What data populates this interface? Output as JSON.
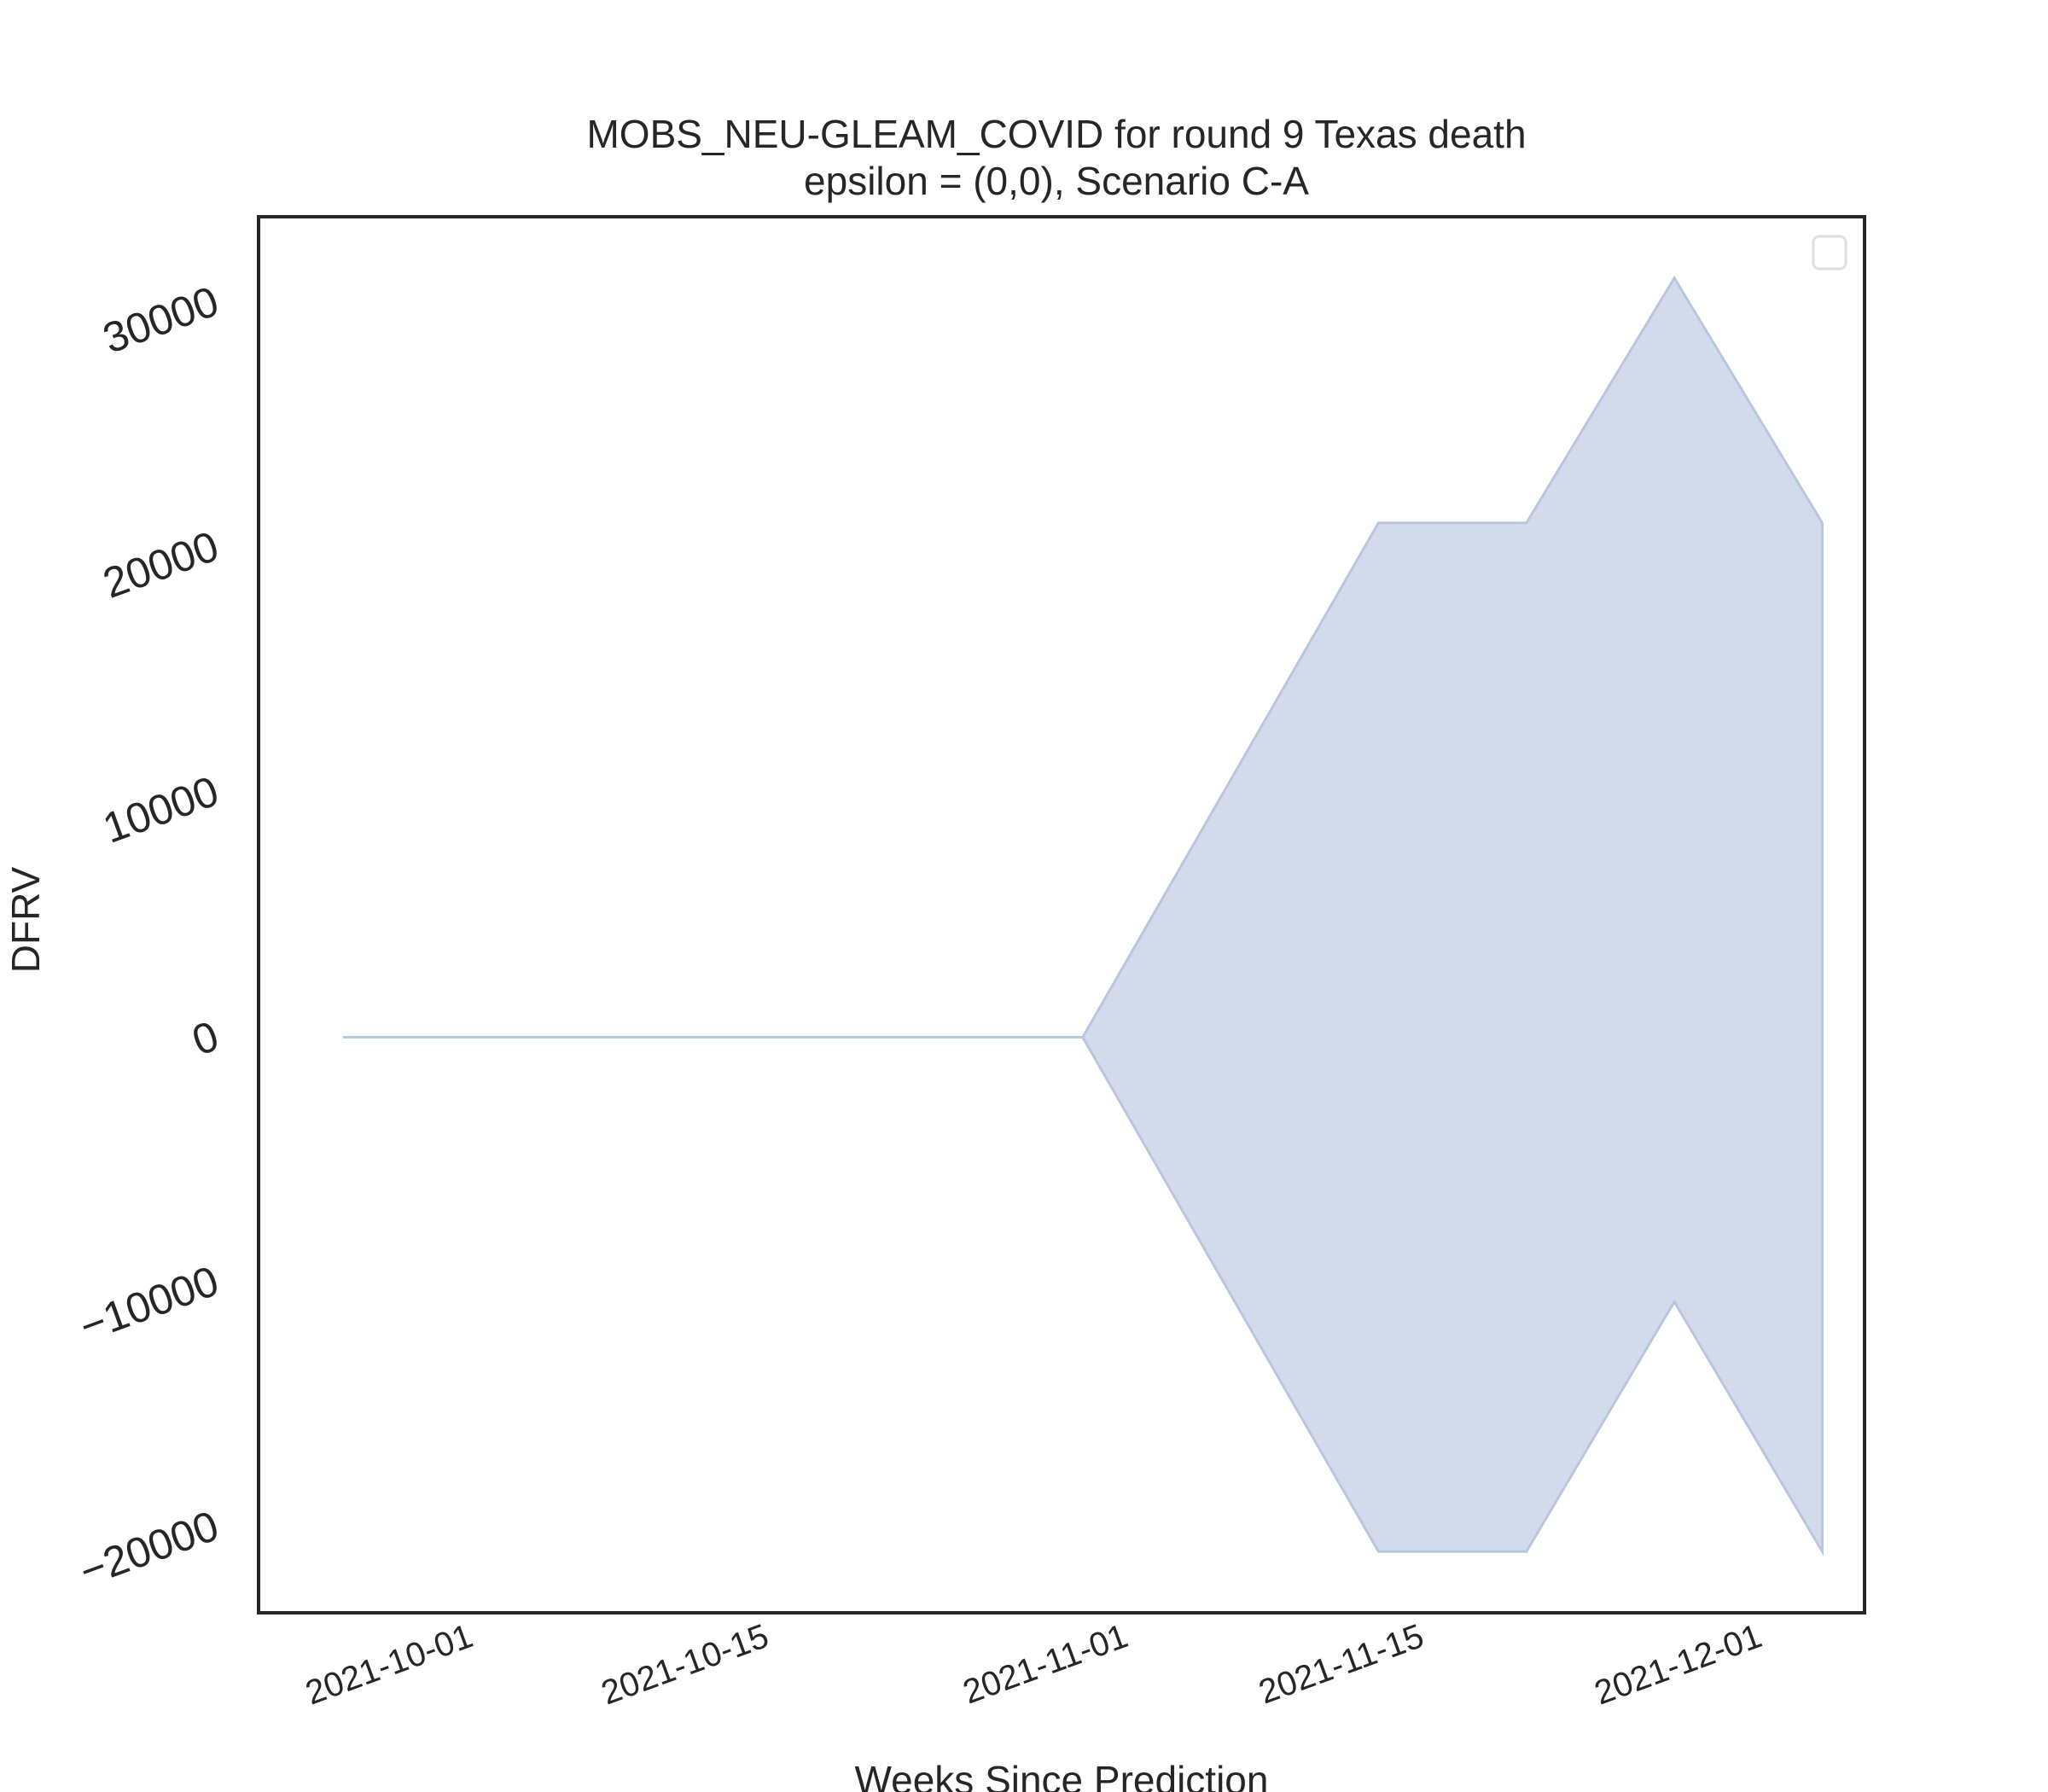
{
  "chart_data": {
    "type": "area",
    "title": "MOBS_NEU-GLEAM_COVID for round 9 Texas death",
    "subtitle": "epsilon = (0,0), Scenario C-A",
    "xlabel": "Weeks Since Prediction",
    "ylabel": "DFRV",
    "x_tick_labels": [
      "2021-10-01",
      "2021-10-15",
      "2021-11-01",
      "2021-11-15",
      "2021-12-01"
    ],
    "y_tick_labels": [
      "−20000",
      "−10000",
      "0",
      "10000",
      "20000",
      "30000"
    ],
    "x_ticks": [
      "2021-10-01",
      "2021-10-15",
      "2021-11-01",
      "2021-11-15",
      "2021-12-01"
    ],
    "y_ticks": [
      -20000,
      -10000,
      0,
      10000,
      20000,
      30000
    ],
    "xlim": [
      "2021-09-21",
      "2021-12-06"
    ],
    "ylim": [
      -23500,
      33500
    ],
    "x": [
      "2021-09-25",
      "2021-10-02",
      "2021-10-09",
      "2021-10-16",
      "2021-10-23",
      "2021-10-30",
      "2021-11-06",
      "2021-11-13",
      "2021-11-20",
      "2021-11-27",
      "2021-12-04"
    ],
    "series": [
      {
        "lower": [
          0,
          0,
          0,
          0,
          0,
          0,
          -10500,
          -21000,
          -21000,
          -10800,
          -21000
        ],
        "upper": [
          0,
          0,
          0,
          0,
          0,
          0,
          10500,
          21000,
          21000,
          31000,
          21000
        ]
      }
    ],
    "legend": {
      "position": "top-right",
      "entries": []
    },
    "grid": false,
    "colors": {
      "fill": "#d2dbeb",
      "edge": "#b8c7e0",
      "spine": "#262626",
      "text": "#262626"
    }
  }
}
